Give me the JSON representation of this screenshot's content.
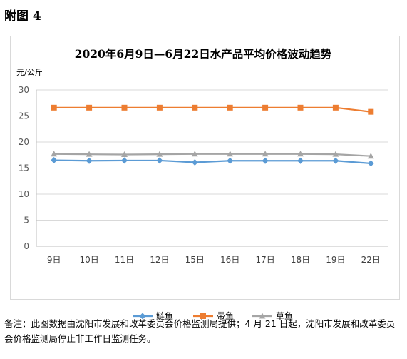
{
  "figure_label": "附图 4",
  "note": "备注：此图数据由沈阳市发展和改革委员会价格监测局提供；4 月 21 日起，沈阳市发展和改革委员会价格监测局停止非工作日监测任务。",
  "chart_data": {
    "type": "line",
    "title": "2020年6月9日—6月22日水产品平均价格波动趋势",
    "ylabel": "元/公斤",
    "xlabel": "",
    "categories": [
      "9日",
      "10日",
      "11日",
      "12日",
      "15日",
      "16日",
      "17日",
      "18日",
      "19日",
      "22日"
    ],
    "ylim": [
      0,
      30
    ],
    "yticks": [
      0,
      5,
      10,
      15,
      20,
      25,
      30
    ],
    "grid": true,
    "legend_position": "bottom",
    "series": [
      {
        "name": "鲢鱼",
        "color": "#5b9bd5",
        "marker": "diamond",
        "values": [
          16.5,
          16.4,
          16.45,
          16.45,
          16.1,
          16.4,
          16.4,
          16.4,
          16.4,
          15.9
        ]
      },
      {
        "name": "带鱼",
        "color": "#ed7d31",
        "marker": "square",
        "values": [
          26.6,
          26.6,
          26.6,
          26.6,
          26.6,
          26.6,
          26.6,
          26.6,
          26.6,
          25.8
        ]
      },
      {
        "name": "草鱼",
        "color": "#a5a5a5",
        "marker": "triangle",
        "values": [
          17.7,
          17.65,
          17.6,
          17.65,
          17.7,
          17.7,
          17.7,
          17.7,
          17.65,
          17.3
        ]
      }
    ]
  }
}
